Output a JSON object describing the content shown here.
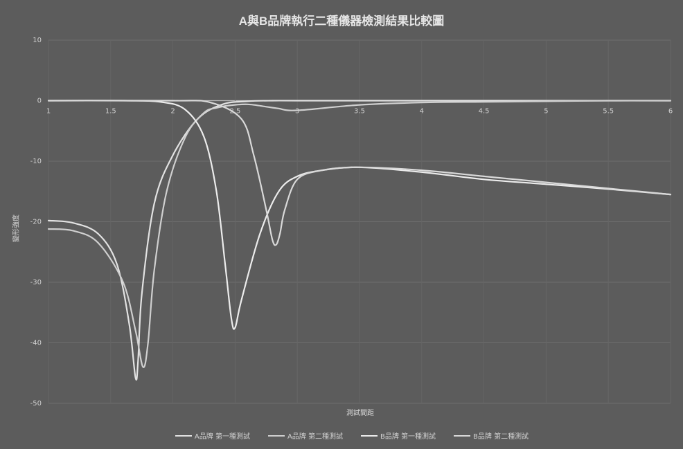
{
  "chart_data": {
    "type": "line",
    "title": "A與B品牌執行二種儀器檢測結果比較圖",
    "xlabel": "測試間距",
    "ylabel": "變形強度",
    "xlim": [
      1,
      6
    ],
    "ylim": [
      -50,
      10
    ],
    "x_ticks": [
      "1",
      "1.5",
      "2",
      "2.5",
      "3",
      "3.5",
      "4",
      "4.5",
      "5",
      "5.5",
      "6"
    ],
    "y_ticks": [
      "10",
      "0",
      "-10",
      "-20",
      "-30",
      "-40",
      "-50"
    ],
    "grid": true,
    "legend_position": "bottom",
    "series": [
      {
        "name": "A品牌 第一種測試",
        "color": "#e2e2e2",
        "x": [
          1.0,
          1.2,
          1.4,
          1.55,
          1.65,
          1.7,
          1.72,
          1.75,
          1.85,
          2.0,
          2.2,
          2.4,
          2.6,
          2.8,
          3.0,
          3.5,
          4.0,
          4.5,
          5.0,
          5.5,
          6.0
        ],
        "y": [
          -19.8,
          -20.2,
          -22.0,
          -27.0,
          -37.0,
          -45.8,
          -43.0,
          -32.0,
          -17.0,
          -9.0,
          -3.0,
          -0.6,
          -0.1,
          0.0,
          0.0,
          0.0,
          0.0,
          0.0,
          0.0,
          0.0,
          0.0
        ]
      },
      {
        "name": "A品牌 第二種測試",
        "color": "#cfcfcf",
        "x": [
          1.0,
          1.2,
          1.4,
          1.6,
          1.7,
          1.76,
          1.8,
          1.85,
          1.95,
          2.1,
          2.25,
          2.35,
          2.45,
          2.6,
          2.75,
          2.85,
          3.0,
          3.5,
          4.0,
          4.5,
          5.0,
          5.5,
          6.0
        ],
        "y": [
          -21.2,
          -21.5,
          -23.5,
          -30.0,
          -38.0,
          -44.0,
          -40.0,
          -28.0,
          -15.0,
          -6.0,
          -2.0,
          -1.2,
          -0.8,
          -0.6,
          -1.0,
          -1.3,
          -1.6,
          -0.7,
          -0.3,
          -0.2,
          -0.1,
          0.0,
          0.0
        ]
      },
      {
        "name": "B品牌 第一種測試",
        "color": "#ececec",
        "x": [
          1.0,
          1.6,
          1.9,
          2.1,
          2.25,
          2.35,
          2.42,
          2.47,
          2.5,
          2.55,
          2.7,
          2.85,
          3.0,
          3.2,
          3.5,
          4.0,
          4.5,
          5.0,
          5.5,
          6.0
        ],
        "y": [
          0.0,
          0.0,
          -0.2,
          -1.5,
          -6.0,
          -15.0,
          -27.0,
          -36.0,
          -37.5,
          -33.0,
          -22.0,
          -15.0,
          -12.5,
          -11.5,
          -11.0,
          -11.8,
          -13.0,
          -13.8,
          -14.6,
          -15.5
        ]
      },
      {
        "name": "B品牌 第二種測試",
        "color": "#d9d9d9",
        "x": [
          1.0,
          2.0,
          2.3,
          2.55,
          2.65,
          2.75,
          2.8,
          2.83,
          2.86,
          2.9,
          3.0,
          3.2,
          3.5,
          4.0,
          4.5,
          5.0,
          5.5,
          6.0
        ],
        "y": [
          0.0,
          0.0,
          -0.3,
          -3.0,
          -9.0,
          -18.0,
          -23.0,
          -23.8,
          -22.0,
          -18.0,
          -13.0,
          -11.5,
          -11.0,
          -11.5,
          -12.5,
          -13.5,
          -14.5,
          -15.5
        ]
      }
    ]
  }
}
